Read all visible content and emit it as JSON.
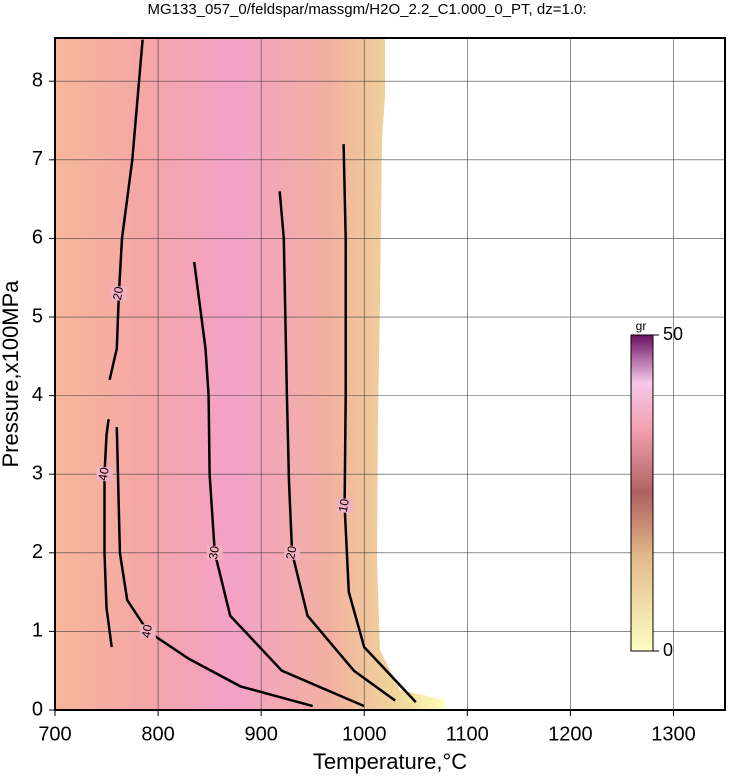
{
  "chart_data": {
    "type": "contour",
    "title": "MG133_057_0/feldspar/massgm/H2O_2.2_C1.000_0_PT, dz=1.0:",
    "xlabel": "Temperature,°C",
    "ylabel": "Pressure,x100MPa",
    "xlim": [
      700,
      1350
    ],
    "ylim": [
      0,
      8.55
    ],
    "xticks": [
      700,
      800,
      900,
      1000,
      1100,
      1200,
      1300
    ],
    "yticks": [
      0,
      1,
      2,
      3,
      4,
      5,
      6,
      7,
      8
    ],
    "grid": true,
    "colorbar": {
      "label": "gr",
      "lim": [
        0,
        50
      ],
      "ticks": [
        0,
        50
      ]
    },
    "contours": [
      {
        "level": 40,
        "x": [
          760,
          763,
          770,
          790,
          830,
          880,
          950
        ],
        "y": [
          3.6,
          2.0,
          1.4,
          1.0,
          0.65,
          0.3,
          0.05
        ]
      },
      {
        "level": 40,
        "x": [
          755,
          750,
          748,
          748,
          750,
          752
        ],
        "y": [
          0.8,
          1.3,
          2.0,
          3.0,
          3.5,
          3.7
        ]
      },
      {
        "level": 30,
        "x": [
          835,
          846,
          849,
          850,
          855,
          870,
          920,
          1000
        ],
        "y": [
          5.7,
          4.6,
          4.0,
          3.0,
          2.0,
          1.2,
          0.5,
          0.05
        ]
      },
      {
        "level": 20,
        "x": [
          918,
          922,
          925,
          927,
          930,
          945,
          990,
          1030
        ],
        "y": [
          6.6,
          6.0,
          4.0,
          2.9,
          2.0,
          1.2,
          0.5,
          0.12
        ]
      },
      {
        "level": 20,
        "x": [
          785,
          775,
          765,
          762,
          760,
          753
        ],
        "y": [
          8.53,
          7.0,
          6.0,
          5.3,
          4.6,
          4.2
        ]
      },
      {
        "level": 10,
        "x": [
          980,
          982,
          982,
          981,
          985,
          1000,
          1050
        ],
        "y": [
          7.2,
          6.0,
          4.0,
          2.6,
          1.5,
          0.8,
          0.1
        ]
      }
    ]
  }
}
